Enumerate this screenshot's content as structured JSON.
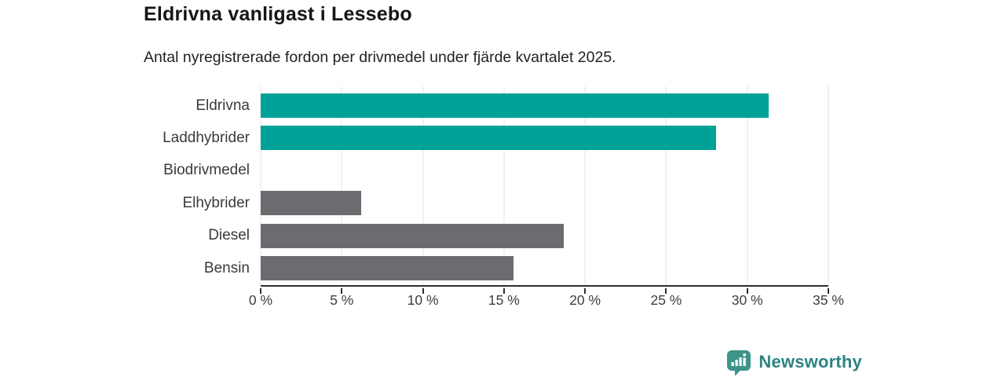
{
  "header": {
    "title": "Eldrivna vanligast i Lessebo",
    "subtitle": "Antal nyregistrerade fordon per drivmedel under fjärde kvartalet 2025."
  },
  "colors": {
    "highlight_teal": "#00a298",
    "neutral_gray": "#6b6b70",
    "gridline": "#e3e3e3",
    "axis": "#2e2e2e",
    "title_text": "#161616",
    "label_text": "#3a3a3a",
    "brand_text": "#2e8383",
    "brand_icon": "#3d9489"
  },
  "chart_data": {
    "type": "bar",
    "orientation": "horizontal",
    "title": "Eldrivna vanligast i Lessebo",
    "subtitle": "Antal nyregistrerade fordon per drivmedel under fjärde kvartalet 2025.",
    "categories": [
      "Eldrivna",
      "Laddhybrider",
      "Biodrivmedel",
      "Elhybrider",
      "Diesel",
      "Bensin"
    ],
    "values": [
      31.3,
      28.1,
      0,
      6.2,
      18.7,
      15.6
    ],
    "unit": "%",
    "bar_colors": [
      "#00a298",
      "#00a298",
      "#00a298",
      "#6b6b70",
      "#6b6b70",
      "#6b6b70"
    ],
    "xlim": [
      0,
      35
    ],
    "x_ticks": [
      0,
      5,
      10,
      15,
      20,
      25,
      30,
      35
    ],
    "x_tick_labels": [
      "0 %",
      "5 %",
      "10 %",
      "15 %",
      "20 %",
      "25 %",
      "30 %",
      "35 %"
    ],
    "grid": true,
    "legend": false
  },
  "footer": {
    "brand": "Newsworthy",
    "brand_icon": "bar-chart-speech-bubble-icon"
  }
}
